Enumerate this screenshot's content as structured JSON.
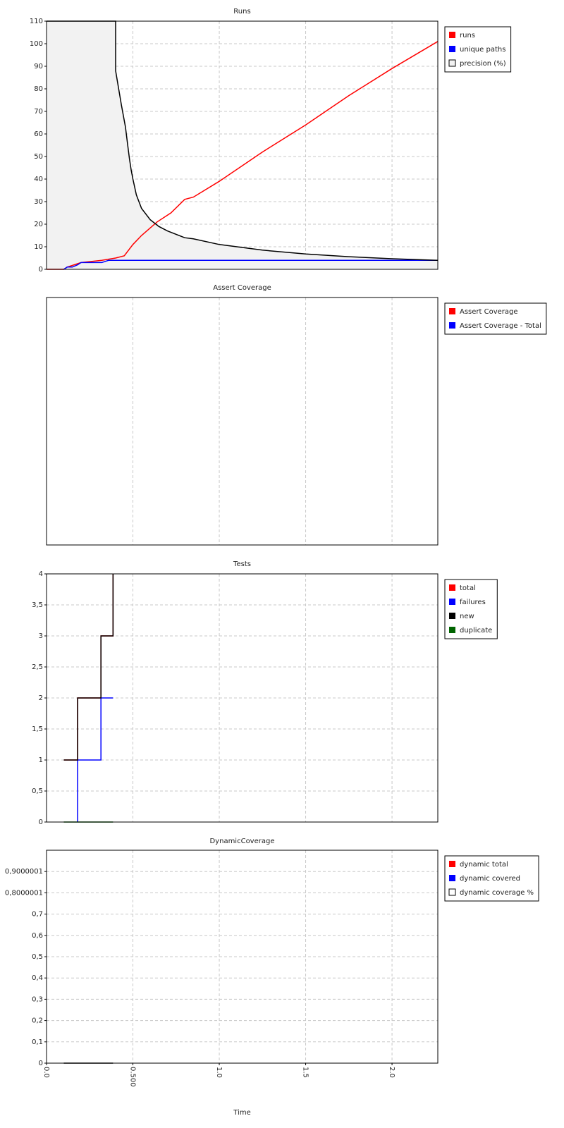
{
  "chart_data": [
    {
      "type": "line",
      "title": "Runs",
      "ylim": [
        0,
        110
      ],
      "yticks": [
        0,
        10,
        20,
        30,
        40,
        50,
        60,
        70,
        80,
        90,
        100,
        110
      ],
      "grid": true,
      "legend": "right",
      "series": [
        {
          "name": "runs",
          "color": "#ff0000",
          "x": [
            0,
            0.1,
            0.12,
            0.16,
            0.2,
            0.32,
            0.4,
            0.45,
            0.5,
            0.55,
            0.64,
            0.72,
            0.8,
            0.85,
            1.0,
            1.25,
            1.5,
            1.75,
            2.0,
            2.265
          ],
          "values": [
            0,
            0,
            1,
            2,
            3,
            4,
            5,
            6,
            11,
            15,
            21,
            25,
            31,
            32,
            39,
            52,
            64,
            77,
            89,
            101
          ]
        },
        {
          "name": "unique paths",
          "color": "#0000ff",
          "x": [
            0.1,
            0.12,
            0.15,
            0.18,
            0.2,
            0.32,
            0.36,
            2.265
          ],
          "values": [
            0,
            1,
            1,
            2,
            3,
            3,
            4,
            4
          ]
        },
        {
          "name": "precision (%)",
          "color": "#000000",
          "fill": "#f2f2f2",
          "x": [
            0,
            0.4,
            0.4,
            0.433,
            0.457,
            0.47,
            0.48,
            0.49,
            0.5,
            0.52,
            0.55,
            0.6,
            0.65,
            0.7,
            0.8,
            0.85,
            1.0,
            1.25,
            1.5,
            1.75,
            2.0,
            2.265
          ],
          "values": [
            110,
            110,
            88,
            73,
            63,
            55,
            49,
            44,
            40,
            33,
            27,
            22,
            19,
            17,
            14,
            13.5,
            11,
            8.5,
            6.8,
            5.6,
            4.7,
            4
          ]
        }
      ]
    },
    {
      "type": "line",
      "title": "Assert Coverage",
      "grid": true,
      "legend": "right",
      "series": [
        {
          "name": "Assert Coverage",
          "color": "#ff0000",
          "x": [],
          "values": []
        },
        {
          "name": "Assert Coverage - Total",
          "color": "#0000ff",
          "x": [],
          "values": []
        }
      ]
    },
    {
      "type": "line",
      "title": "Tests",
      "ylim": [
        0,
        4
      ],
      "yticks": [
        0,
        {
          "value": 0.5,
          "label": "0,5"
        },
        1,
        {
          "value": 1.5,
          "label": "1,5"
        },
        2,
        {
          "value": 2.5,
          "label": "2,5"
        },
        3,
        {
          "value": 3.5,
          "label": "3,5"
        },
        4
      ],
      "grid": true,
      "legend": "right",
      "series": [
        {
          "name": "total",
          "color": "#ff0000",
          "x": [
            0.1,
            0.18,
            0.18,
            0.315,
            0.315,
            0.385,
            0.385
          ],
          "values": [
            1,
            1,
            2,
            2,
            3,
            3,
            4
          ]
        },
        {
          "name": "failures",
          "color": "#0000ff",
          "x": [
            0.18,
            0.18,
            0.315,
            0.315,
            0.385
          ],
          "values": [
            0,
            1,
            1,
            2,
            2
          ]
        },
        {
          "name": "new",
          "color": "#000000",
          "x": [
            0.1,
            0.18,
            0.18,
            0.315,
            0.315,
            0.385,
            0.385
          ],
          "values": [
            1,
            1,
            2,
            2,
            3,
            3,
            4
          ]
        },
        {
          "name": "duplicate",
          "color": "#006400",
          "x": [
            0.1,
            0.385
          ],
          "values": [
            0,
            0
          ]
        }
      ]
    },
    {
      "type": "line",
      "title": "DynamicCoverage",
      "ylim": [
        0,
        1
      ],
      "yticks": [
        0,
        {
          "value": 0.1,
          "label": "0,1"
        },
        {
          "value": 0.2,
          "label": "0,2"
        },
        {
          "value": 0.3,
          "label": "0,3"
        },
        {
          "value": 0.4,
          "label": "0,4"
        },
        {
          "value": 0.5,
          "label": "0,5"
        },
        {
          "value": 0.6,
          "label": "0,6"
        },
        {
          "value": 0.7,
          "label": "0,7"
        },
        {
          "value": 0.8000001,
          "label": "0,8000001"
        },
        {
          "value": 0.9000001,
          "label": "0,9000001"
        }
      ],
      "grid": true,
      "legend": "right",
      "xlabel": "Time",
      "xlim": [
        0,
        2.265
      ],
      "xticks": [
        {
          "value": 0,
          "label": "0.0"
        },
        {
          "value": 0.5,
          "label": "0.500"
        },
        {
          "value": 1,
          "label": "1.0"
        },
        {
          "value": 1.5,
          "label": "1.5"
        },
        {
          "value": 2,
          "label": "2.0"
        }
      ],
      "series": [
        {
          "name": "dynamic total",
          "color": "#ff0000",
          "x": [],
          "values": []
        },
        {
          "name": "dynamic covered",
          "color": "#0000ff",
          "x": [],
          "values": []
        },
        {
          "name": "dynamic coverage %",
          "color": "#000000",
          "fill": "#ffffff",
          "x": [
            0.1,
            0.385
          ],
          "values": [
            0,
            0
          ]
        }
      ]
    }
  ]
}
